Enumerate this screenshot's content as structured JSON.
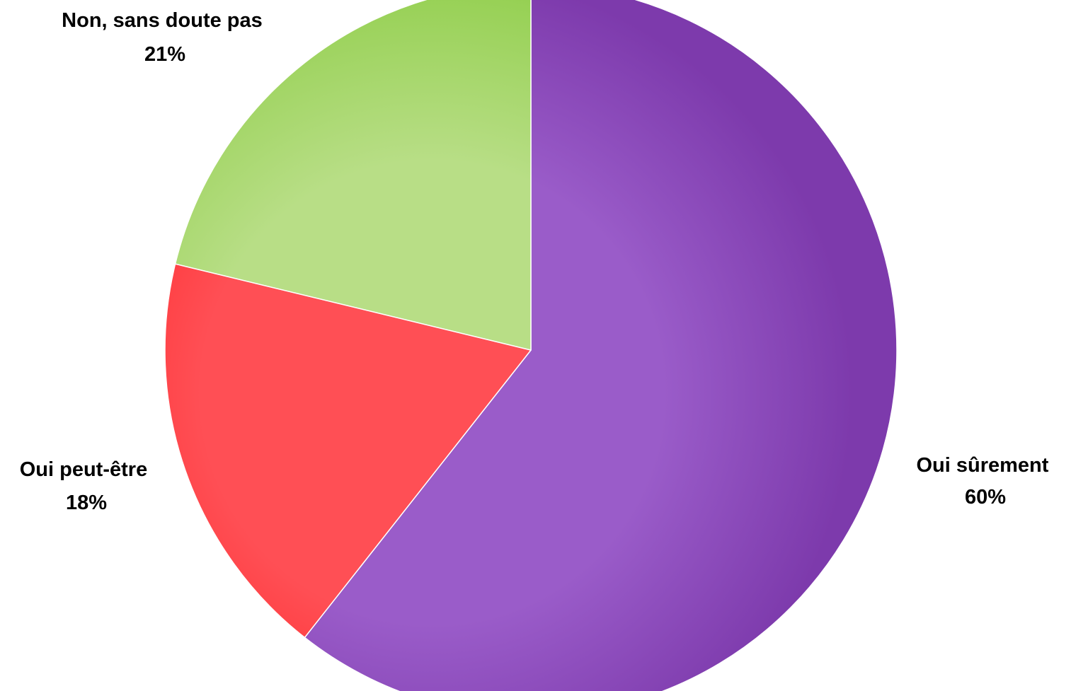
{
  "chart_data": {
    "type": "pie",
    "title": "",
    "start_angle_deg": 0,
    "direction": "clockwise",
    "slices": [
      {
        "label": "Oui sûrement",
        "value": 60,
        "value_label": "60%",
        "color": "#9a5cc9",
        "color_dark": "#7d3aac"
      },
      {
        "label": "Oui peut-être",
        "value": 18,
        "value_label": "18%",
        "color": "#ff4f55",
        "color_dark": "#ff2222"
      },
      {
        "label": "Non, sans doute pas",
        "value": 21,
        "value_label": "21%",
        "color": "#b8de86",
        "color_dark": "#93cf4f"
      }
    ],
    "legend": "none",
    "slice_border_color": "#ffffff"
  }
}
